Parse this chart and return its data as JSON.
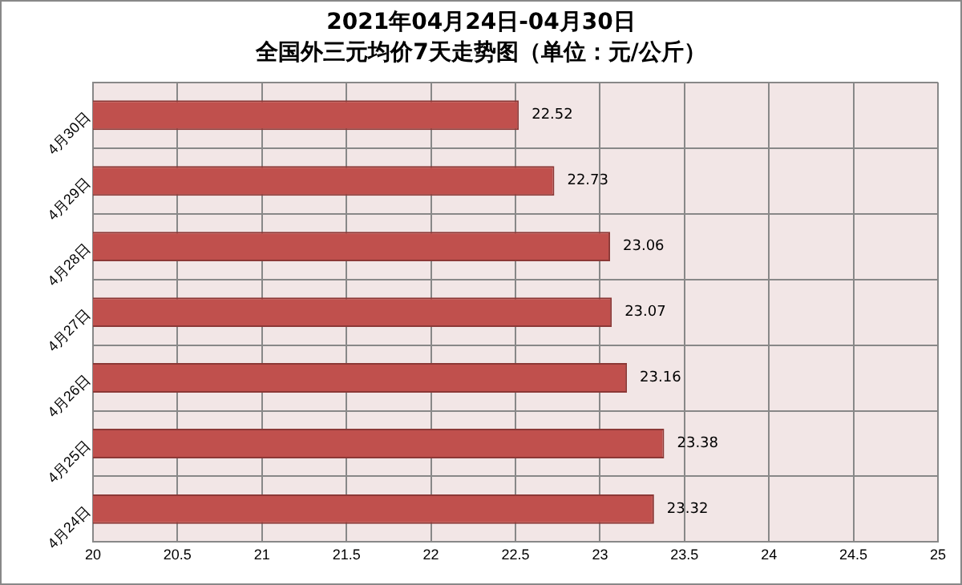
{
  "chart_data": {
    "type": "bar",
    "orientation": "horizontal",
    "title": "2021年04月24日-04月30日",
    "subtitle": "全国外三元均价7天走势图（单位：元/公斤）",
    "categories": [
      "4月30日",
      "4月29日",
      "4月28日",
      "4月27日",
      "4月26日",
      "4月25日",
      "4月24日"
    ],
    "values": [
      22.52,
      22.73,
      23.06,
      23.07,
      23.16,
      23.38,
      23.32
    ],
    "color": "#c0504d",
    "xlim": [
      20,
      25
    ],
    "xticks": [
      20,
      20.5,
      21,
      21.5,
      22,
      22.5,
      23,
      23.5,
      24,
      24.5,
      25
    ],
    "grid": true,
    "data_labels": true,
    "legend": false
  }
}
